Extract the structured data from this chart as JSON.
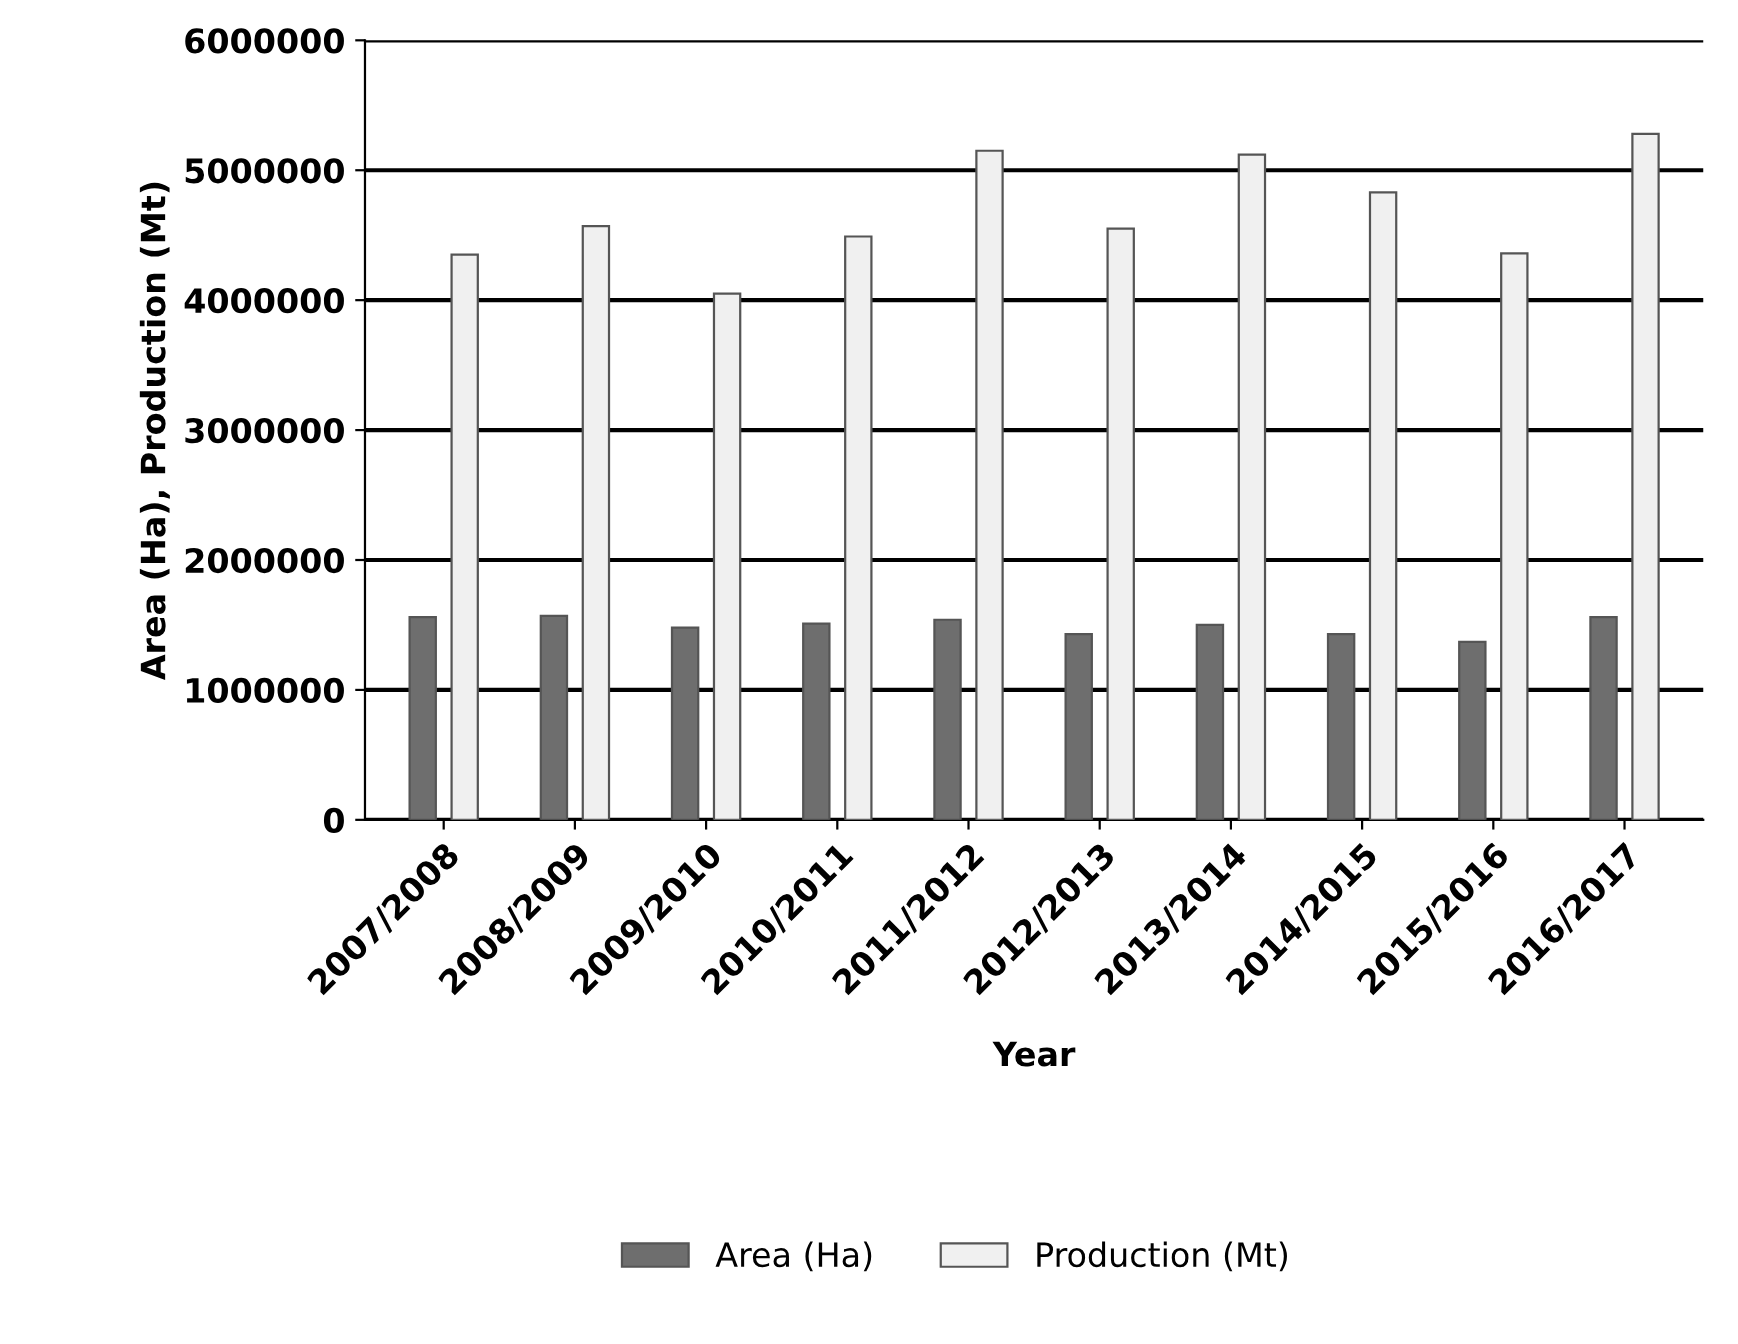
{
  "chart_data": {
    "type": "bar",
    "xlabel": "Year",
    "ylabel": "Area (Ha), Production (Mt)",
    "categories": [
      "2007/2008",
      "2008/2009",
      "2009/2010",
      "2010/2011",
      "2011/2012",
      "2012/2013",
      "2013/2014",
      "2014/2015",
      "2015/2016",
      "2016/2017"
    ],
    "series": [
      {
        "name": "Area (Ha)",
        "color": "#6e6e6e",
        "values": [
          1560000,
          1570000,
          1480000,
          1510000,
          1540000,
          1430000,
          1500000,
          1430000,
          1370000,
          1560000
        ]
      },
      {
        "name": "Production (Mt)",
        "color": "#f0f0f0",
        "values": [
          4350000,
          4570000,
          4050000,
          4490000,
          5150000,
          4550000,
          5120000,
          4830000,
          4360000,
          5280000
        ]
      }
    ],
    "ylim": [
      0,
      6000000
    ],
    "yticks": [
      0,
      1000000,
      2000000,
      3000000,
      4000000,
      5000000,
      6000000
    ],
    "grid": "y",
    "legend": "bottom"
  }
}
